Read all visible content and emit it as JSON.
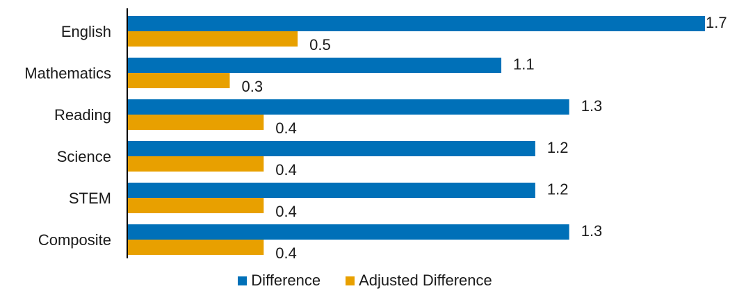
{
  "chart_data": {
    "type": "bar",
    "orientation": "horizontal",
    "title": "",
    "xlabel": "",
    "ylabel": "",
    "categories": [
      "English",
      "Mathematics",
      "Reading",
      "Science",
      "STEM",
      "Composite"
    ],
    "series": [
      {
        "name": "Difference",
        "color": "#0070b8",
        "values": [
          1.7,
          1.1,
          1.3,
          1.2,
          1.2,
          1.3
        ]
      },
      {
        "name": "Adjusted Difference",
        "color": "#e8a000",
        "values": [
          0.5,
          0.3,
          0.4,
          0.4,
          0.4,
          0.4
        ]
      }
    ],
    "xlim": [
      0,
      1.7
    ],
    "grid": false,
    "legend_position": "bottom"
  }
}
